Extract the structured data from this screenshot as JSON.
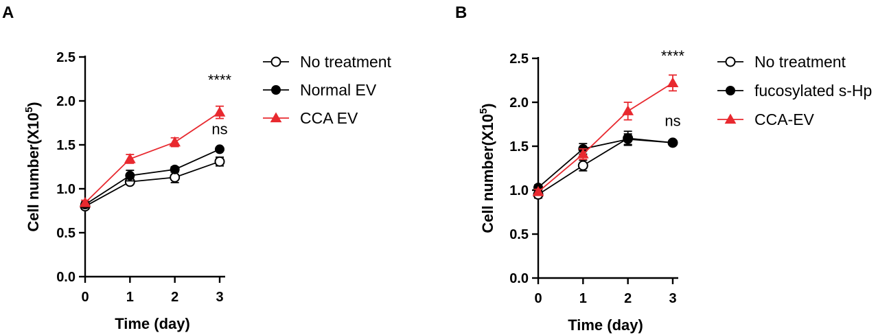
{
  "colors": {
    "black": "#000000",
    "red": "#e8292f"
  },
  "chart_data": [
    {
      "panel": "A",
      "type": "line",
      "xlabel": "Time (day)",
      "ylabel": {
        "main": "Cell number(X10",
        "sup": "5",
        "close": ")"
      },
      "xlim": [
        0,
        3
      ],
      "ylim": [
        0,
        2.5
      ],
      "xticks": [
        0,
        1,
        2,
        3
      ],
      "yticks": [
        "0.0",
        "0.5",
        "1.0",
        "1.5",
        "2.0",
        "2.5"
      ],
      "series": [
        {
          "name": "No treatment",
          "marker": "open-circle",
          "color": "#000000",
          "x": [
            0,
            1,
            2,
            3
          ],
          "y": [
            0.8,
            1.08,
            1.13,
            1.31
          ],
          "err": [
            0.03,
            0.03,
            0.06,
            0.05
          ]
        },
        {
          "name": "Normal EV",
          "marker": "filled-circle",
          "color": "#000000",
          "x": [
            0,
            1,
            2,
            3
          ],
          "y": [
            0.82,
            1.15,
            1.22,
            1.45
          ],
          "err": [
            0.03,
            0.06,
            0.03,
            0.02
          ]
        },
        {
          "name": "CCA EV",
          "marker": "triangle",
          "color": "#e8292f",
          "x": [
            0,
            1,
            2,
            3
          ],
          "y": [
            0.84,
            1.34,
            1.53,
            1.87
          ],
          "err": [
            0.03,
            0.05,
            0.05,
            0.07
          ]
        }
      ],
      "annotations": [
        {
          "text": "****",
          "x": 3,
          "y": 2.18
        },
        {
          "text": "ns",
          "x": 3,
          "y": 1.62
        }
      ]
    },
    {
      "panel": "B",
      "type": "line",
      "xlabel": "Time (day)",
      "ylabel": {
        "main": "Cell number(X10",
        "sup": "5",
        "close": ")"
      },
      "xlim": [
        0,
        3
      ],
      "ylim": [
        0,
        2.5
      ],
      "xticks": [
        0,
        1,
        2,
        3
      ],
      "yticks": [
        "0.0",
        "0.5",
        "1.0",
        "1.5",
        "2.0",
        "2.5"
      ],
      "series": [
        {
          "name": "No treatment",
          "marker": "open-circle",
          "color": "#000000",
          "x": [
            0,
            1,
            2,
            3
          ],
          "y": [
            0.95,
            1.28,
            1.59,
            1.54
          ],
          "err": [
            0.04,
            0.06,
            0.08,
            0.02
          ]
        },
        {
          "name": "fucosylated s-Hp",
          "marker": "filled-circle",
          "color": "#000000",
          "x": [
            0,
            1,
            2,
            3
          ],
          "y": [
            1.03,
            1.47,
            1.58,
            1.54
          ],
          "err": [
            0.03,
            0.06,
            0.06,
            0.02
          ]
        },
        {
          "name": "CCA-EV",
          "marker": "triangle",
          "color": "#e8292f",
          "x": [
            0,
            1,
            2,
            3
          ],
          "y": [
            0.98,
            1.41,
            1.9,
            2.22
          ],
          "err": [
            0.03,
            0.06,
            0.1,
            0.09
          ]
        }
      ],
      "annotations": [
        {
          "text": "****",
          "x": 3,
          "y": 2.47
        },
        {
          "text": "ns",
          "x": 3,
          "y": 1.73
        }
      ]
    }
  ]
}
